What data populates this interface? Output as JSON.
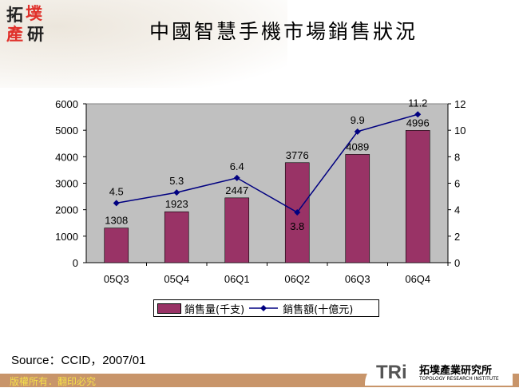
{
  "logo": {
    "chars": [
      "拓",
      "墣",
      "產",
      "研"
    ]
  },
  "title": "中國智慧手機市場銷售狀況",
  "chart_data": {
    "type": "bar+line",
    "categories": [
      "05Q3",
      "05Q4",
      "06Q1",
      "06Q2",
      "06Q3",
      "06Q4"
    ],
    "series": [
      {
        "name": "銷售量(千支)",
        "type": "bar",
        "axis": "left",
        "values": [
          1308,
          1923,
          2447,
          3776,
          4089,
          4996
        ],
        "color": "#993366"
      },
      {
        "name": "銷售額(十億元)",
        "type": "line",
        "axis": "right",
        "values": [
          4.5,
          5.3,
          6.4,
          3.8,
          9.9,
          11.2
        ],
        "color": "#000080"
      }
    ],
    "left_axis": {
      "range": [
        0,
        6000
      ],
      "ticks": [
        "0",
        "1000",
        "2000",
        "3000",
        "4000",
        "5000",
        "6000"
      ]
    },
    "right_axis": {
      "range": [
        0,
        12
      ],
      "ticks": [
        "0",
        "2",
        "4",
        "6",
        "8",
        "10",
        "12"
      ]
    },
    "grid": false,
    "plot_background": "#c0c0c0",
    "legend_placement": "bottom"
  },
  "legend": {
    "bar": "銷售量(千支)",
    "line": "銷售額(十億元)"
  },
  "source": "Source：CCID，2007/01",
  "footer": {
    "copyright": "版權所有．翻印必究",
    "brand": "TRi",
    "brand_name": "拓墣產業研究所",
    "brand_en": "TOPOLOGY RESEARCH INSTITUTE"
  }
}
